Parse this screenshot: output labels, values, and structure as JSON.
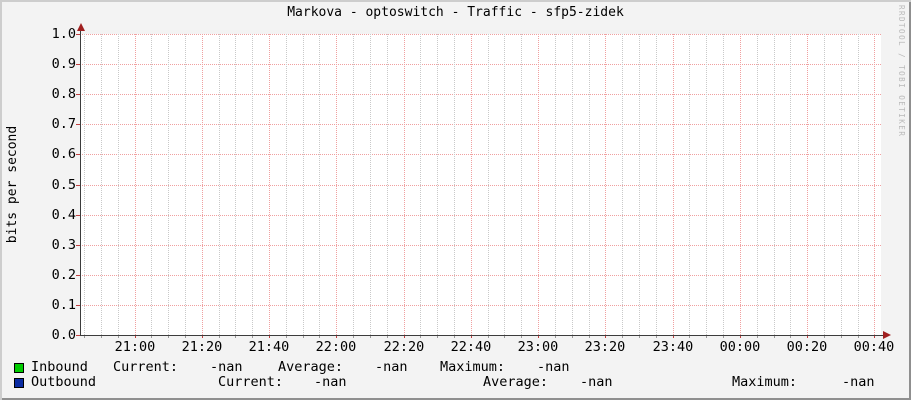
{
  "title": "Markova - optoswitch - Traffic - sfp5-zidek",
  "watermark": "RRDTOOL / TOBI OETIKER",
  "y_axis": {
    "label": "bits per second",
    "ticks": [
      "1.0",
      "0.9",
      "0.8",
      "0.7",
      "0.6",
      "0.5",
      "0.4",
      "0.3",
      "0.2",
      "0.1",
      "0.0"
    ]
  },
  "x_axis": {
    "ticks": [
      "21:00",
      "21:20",
      "21:40",
      "22:00",
      "22:20",
      "22:40",
      "23:00",
      "23:20",
      "23:40",
      "00:00",
      "00:20",
      "00:40"
    ]
  },
  "legend": {
    "items": [
      {
        "label": "Inbound",
        "color": "#00CC00",
        "stats": [
          {
            "label": "Current:",
            "value": "-nan"
          },
          {
            "label": "Average:",
            "value": "-nan"
          },
          {
            "label": "Maximum:",
            "value": "-nan"
          }
        ]
      },
      {
        "label": "Outbound",
        "color": "#0A2BA2",
        "stats": [
          {
            "label": "Current:",
            "value": "-nan"
          },
          {
            "label": "Average:",
            "value": "-nan"
          },
          {
            "label": "Maximum:",
            "value": "-nan"
          }
        ]
      }
    ]
  },
  "colors": {
    "background": "#f3f3f3",
    "canvas": "#ffffff",
    "grid_major": "#f0a0a0",
    "grid_minor": "#c9c9c9",
    "axis": "#3c3c3c",
    "arrow": "#a02020",
    "tick_red": "#c04040",
    "tick_gray": "#999999",
    "watermark": "#b9b9b9",
    "border_light": "#cdcdcd",
    "border_dark": "#8f8f8f"
  },
  "chart_data": {
    "type": "line",
    "title": "Markova - optoswitch - Traffic - sfp5-zidek",
    "xlabel": "",
    "ylabel": "bits per second",
    "x_ticks": [
      "21:00",
      "21:20",
      "21:40",
      "22:00",
      "22:20",
      "22:40",
      "23:00",
      "23:20",
      "23:40",
      "00:00",
      "00:20",
      "00:40"
    ],
    "ylim": [
      0.0,
      1.0
    ],
    "y_tick_step": 0.1,
    "grid": true,
    "legend_position": "bottom",
    "series": [
      {
        "name": "Inbound",
        "color": "#00CC00",
        "values": [],
        "current": "-nan",
        "average": "-nan",
        "maximum": "-nan"
      },
      {
        "name": "Outbound",
        "color": "#0A2BA2",
        "values": [],
        "current": "-nan",
        "average": "-nan",
        "maximum": "-nan"
      }
    ]
  }
}
